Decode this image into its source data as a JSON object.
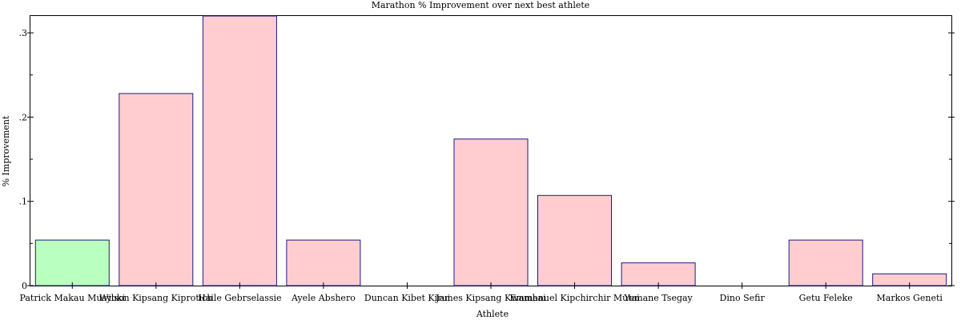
{
  "chart_data": {
    "type": "bar",
    "title": "Marathon % Improvement over next best athlete",
    "xlabel": "Athlete",
    "ylabel": "% Improvement",
    "ylim": [
      0,
      0.32
    ],
    "yticks": [
      {
        "value": 0,
        "label": "0"
      },
      {
        "value": 0.1,
        "label": ".1"
      },
      {
        "value": 0.2,
        "label": ".2"
      },
      {
        "value": 0.3,
        "label": ".3"
      }
    ],
    "categories": [
      "Patrick Makau Musyoki",
      "Wilson Kipsang Kiprotich",
      "Haile Gebrselassie",
      "Ayele Abshero",
      "Duncan Kibet Kirui",
      "James Kipsang Kwambai",
      "Emmanuel Kipchirchir Mutai",
      "Yemane Tsegay",
      "Dino Sefir",
      "Getu Feleke",
      "Markos Geneti"
    ],
    "values": [
      0.054,
      0.228,
      0.32,
      0.054,
      0.0,
      0.174,
      0.107,
      0.027,
      0.0,
      0.054,
      0.014
    ],
    "colors": [
      "#b9ffc0",
      "#ffcdd0",
      "#ffcdd0",
      "#ffcdd0",
      "#ffcdd0",
      "#ffcdd0",
      "#ffcdd0",
      "#ffcdd0",
      "#ffcdd0",
      "#ffcdd0",
      "#ffcdd0"
    ],
    "bar_stroke": "#1a1a80",
    "grid": false,
    "legend": "none"
  }
}
